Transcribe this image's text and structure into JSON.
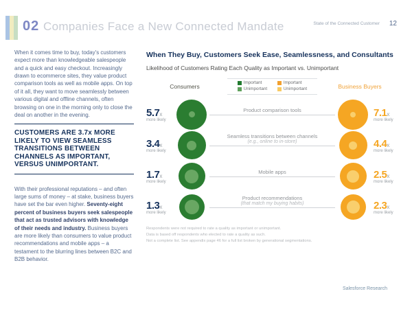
{
  "header": {
    "section_number": "02",
    "section_title": "Companies Face a New Connected Mandate",
    "report_title": "State of the Connected Customer",
    "page_number": "12"
  },
  "sidebar": {
    "paragraph1": "When it comes time to buy, today's customers expect more than knowledgeable salespeople and a quick and easy checkout. Increasingly drawn to ecommerce sites, they value product comparison tools as well as mobile apps. On top of it all, they want to move seamlessly between various digital and offline channels, often browsing on one in the morning only to close the deal on another in the evening.",
    "callout": "CUSTOMERS ARE 3.7x MORE LIKELY TO VIEW SEAMLESS TRANSITIONS BETWEEN CHANNELS AS IMPORTANT, VERSUS UNIMPORTANT.",
    "paragraph2_lead": "With their professional reputations – and often large sums of money – at stake, business buyers have set the bar even higher. ",
    "paragraph2_bold": "Seventy-eight percent of business buyers seek salespeople that act as trusted advisors with knowledge of their needs and industry.",
    "paragraph2_rest": " Business buyers are more likely than consumers to value product recommendations and mobile apps – a testament to the blurring lines between B2C and B2B behavior."
  },
  "main": {
    "title": "When They Buy, Customers Seek Ease, Seamlessness, and Consultants",
    "subtitle": "Likelihood of Customers Rating Each Quality as Important vs. Unimportant",
    "legend": {
      "consumers_label": "Consumers",
      "business_label": "Business Buyers",
      "important_label": "Important",
      "unimportant_label": "Unimportant"
    },
    "more_likely": "more likely",
    "x_suffix": "x",
    "footnotes": [
      "Respondents were not required to rate a quality as important or unimportant.",
      "Data is based off respondents who elected to rate a quality as such.",
      "Not a complete list. See appendix page 46 for a full list broken by generational segmentations."
    ],
    "footer": "Salesforce Research"
  },
  "colors": {
    "navy": "#16325c",
    "periwinkle": "#7d87c4",
    "consumer_important": "#2b7d31",
    "consumer_unimportant": "#69a763",
    "business_important": "#f5a623",
    "business_unimportant": "#f9cf6d"
  },
  "chart_data": {
    "type": "scatter",
    "title": "When They Buy, Customers Seek Ease, Seamlessness, and Consultants",
    "subtitle": "Likelihood of Customers Rating Each Quality as Important vs. Unimportant",
    "categories": [
      "Product comparison tools",
      "Seamless transitions between channels (e.g., online to in-store)",
      "Mobile apps",
      "Product recommendations (that match my buying habits)"
    ],
    "series": [
      {
        "name": "Consumers",
        "color": "#2b7d31",
        "unit": "x more likely",
        "values": [
          5.7,
          3.4,
          1.7,
          1.3
        ]
      },
      {
        "name": "Business Buyers",
        "color": "#f5a623",
        "unit": "x more likely",
        "values": [
          7.1,
          4.4,
          2.5,
          2.3
        ]
      }
    ],
    "legend": [
      "Important",
      "Unimportant"
    ],
    "legend_position": "top",
    "rows": [
      {
        "label": "Product comparison tools",
        "sublabel": "",
        "consumer": "5.7",
        "business": "7.1",
        "viz": {
          "outer": 44,
          "consumer_inner": 9,
          "business_inner": 8
        }
      },
      {
        "label": "Seamless transitions between channels",
        "sublabel": "(e.g., online to in-store)",
        "consumer": "3.4",
        "business": "4.4",
        "viz": {
          "outer": 41,
          "consumer_inner": 14,
          "business_inner": 12
        }
      },
      {
        "label": "Mobile apps",
        "sublabel": "",
        "consumer": "1.7",
        "business": "2.5",
        "viz": {
          "outer": 39,
          "consumer_inner": 20,
          "business_inner": 18
        }
      },
      {
        "label": "Product recommendations",
        "sublabel": "(that match my buying habits)",
        "consumer": "1.3",
        "business": "2.3",
        "viz": {
          "outer": 37,
          "consumer_inner": 21,
          "business_inner": 19
        }
      }
    ]
  }
}
